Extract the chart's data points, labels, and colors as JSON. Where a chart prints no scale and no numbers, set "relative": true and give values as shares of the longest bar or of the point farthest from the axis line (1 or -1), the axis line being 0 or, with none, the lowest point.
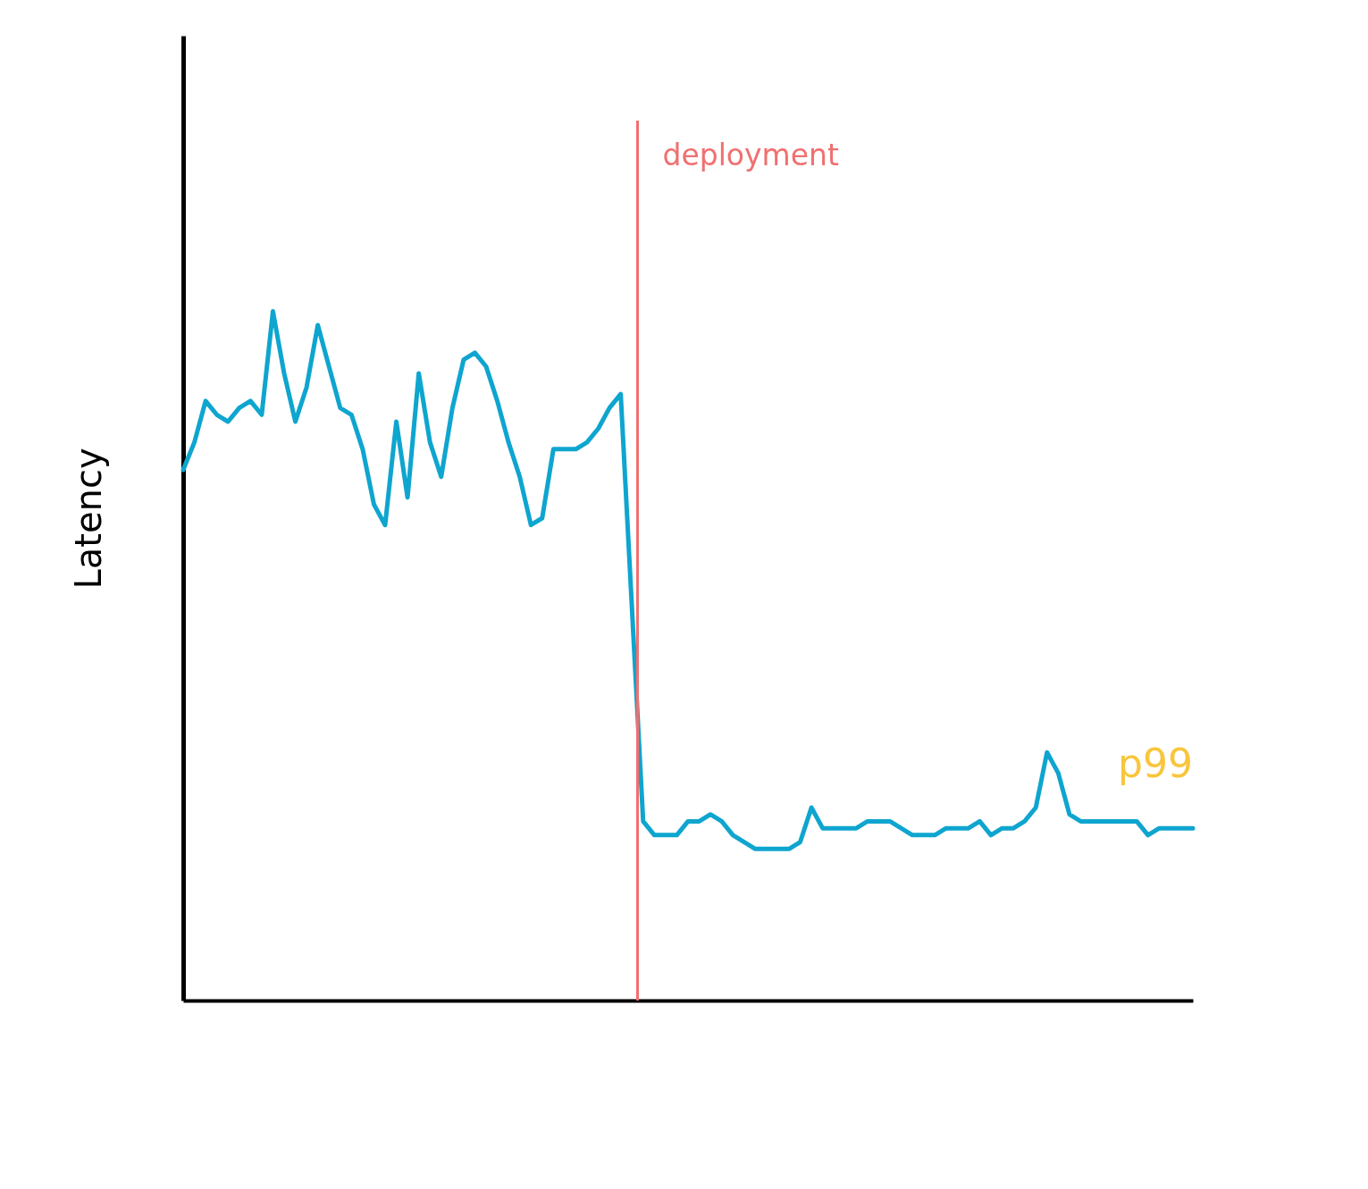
{
  "chart_data": {
    "type": "line",
    "ylabel": "Latency",
    "relative": true,
    "categories": [
      null,
      null,
      null,
      null,
      null,
      null,
      null,
      null,
      null,
      null,
      null,
      null,
      null,
      null,
      null,
      null,
      null,
      null,
      null,
      null,
      null,
      null,
      null,
      null,
      null,
      null,
      null,
      null,
      null,
      null,
      null,
      null,
      null,
      null,
      null,
      null,
      null,
      null,
      null,
      null,
      null,
      null,
      null,
      null,
      null,
      null,
      null,
      null,
      null,
      null,
      null,
      null,
      null,
      null,
      null,
      null,
      null,
      null,
      null,
      null,
      null,
      null,
      null,
      null,
      null,
      null,
      null,
      null,
      null,
      null,
      null,
      null,
      null,
      null,
      null,
      null,
      null,
      null,
      null,
      null,
      null,
      null,
      null,
      null,
      null,
      null,
      null,
      null,
      null,
      null,
      null
    ],
    "series": [
      {
        "name": "p99",
        "color": "#0ea5cf",
        "values": [
          0.77,
          0.81,
          0.87,
          0.85,
          0.84,
          0.86,
          0.87,
          0.85,
          1,
          0.91,
          0.84,
          0.89,
          0.98,
          0.92,
          0.86,
          0.85,
          0.8,
          0.72,
          0.69,
          0.84,
          0.73,
          0.91,
          0.81,
          0.76,
          0.86,
          0.93,
          0.94,
          0.92,
          0.87,
          0.81,
          0.76,
          0.69,
          0.7,
          0.8,
          0.8,
          0.8,
          0.81,
          0.83,
          0.86,
          0.88,
          0.57,
          0.26,
          0.24,
          0.24,
          0.24,
          0.26,
          0.26,
          0.27,
          0.26,
          0.24,
          0.23,
          0.22,
          0.22,
          0.22,
          0.22,
          0.23,
          0.28,
          0.25,
          0.25,
          0.25,
          0.25,
          0.26,
          0.26,
          0.26,
          0.25,
          0.24,
          0.24,
          0.24,
          0.25,
          0.25,
          0.25,
          0.26,
          0.24,
          0.25,
          0.25,
          0.26,
          0.28,
          0.36,
          0.33,
          0.27,
          0.26,
          0.26,
          0.26,
          0.26,
          0.26,
          0.26,
          0.24,
          0.25,
          0.25,
          0.25,
          0.25
        ]
      }
    ],
    "annotations": [
      "deployment"
    ],
    "grid": false
  }
}
